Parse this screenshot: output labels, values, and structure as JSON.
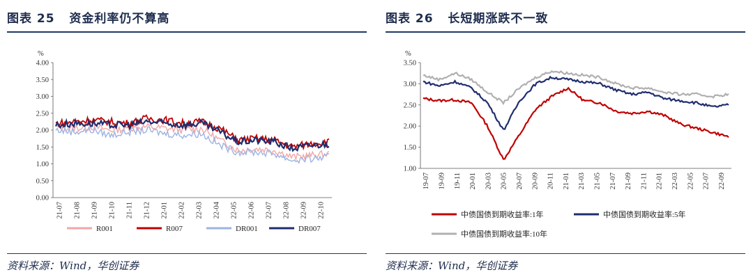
{
  "left": {
    "figure_no": "图表 25",
    "title": "资金利率仍不算高",
    "source": "资料来源：Wind，华创证券",
    "unit": "%",
    "chart_data": {
      "type": "line",
      "x": [
        "21-07",
        "21-08",
        "21-09",
        "21-10",
        "21-11",
        "21-12",
        "22-01",
        "22-02",
        "22-03",
        "22-04",
        "22-05",
        "22-06",
        "22-07",
        "22-08",
        "22-09",
        "22-10"
      ],
      "yticks": [
        "0.00",
        "0.50",
        "1.00",
        "1.50",
        "2.00",
        "2.50",
        "3.00",
        "3.50",
        "4.00"
      ],
      "ylim": [
        0,
        4.0
      ],
      "series": [
        {
          "name": "R001",
          "color": "#f4a6a6",
          "values": [
            2.1,
            2.05,
            2.1,
            2.0,
            2.05,
            2.1,
            2.05,
            2.0,
            2.05,
            1.7,
            1.4,
            1.45,
            1.4,
            1.2,
            1.25,
            1.3
          ]
        },
        {
          "name": "R007",
          "color": "#c00000",
          "values": [
            2.2,
            2.25,
            2.3,
            2.25,
            2.2,
            2.35,
            2.3,
            2.2,
            2.25,
            2.05,
            1.7,
            1.75,
            1.7,
            1.5,
            1.6,
            1.65
          ]
        },
        {
          "name": "DR001",
          "color": "#9db3e0",
          "values": [
            2.0,
            1.95,
            2.0,
            1.85,
            1.95,
            2.0,
            1.9,
            1.85,
            1.9,
            1.55,
            1.35,
            1.35,
            1.3,
            1.1,
            1.15,
            1.2
          ]
        },
        {
          "name": "DR007",
          "color": "#1f2d6e",
          "values": [
            2.15,
            2.2,
            2.2,
            2.15,
            2.15,
            2.25,
            2.2,
            2.15,
            2.2,
            1.95,
            1.65,
            1.7,
            1.65,
            1.45,
            1.55,
            1.6
          ]
        }
      ]
    }
  },
  "right": {
    "figure_no": "图表 26",
    "title": "长短期涨跌不一致",
    "source": "资料来源：Wind，华创证券",
    "unit": "%",
    "chart_data": {
      "type": "line",
      "x": [
        "19-07",
        "19-09",
        "19-11",
        "20-01",
        "20-03",
        "20-05",
        "20-07",
        "20-09",
        "20-11",
        "21-01",
        "21-03",
        "21-05",
        "21-07",
        "21-09",
        "21-11",
        "22-01",
        "22-03",
        "22-05",
        "22-07",
        "22-09"
      ],
      "yticks": [
        "1.00",
        "1.50",
        "2.00",
        "2.50",
        "3.00",
        "3.50"
      ],
      "ylim": [
        1.0,
        3.5
      ],
      "series": [
        {
          "name": "中债国债到期收益率:1年",
          "color": "#c00000",
          "values": [
            2.65,
            2.6,
            2.62,
            2.55,
            2.0,
            1.2,
            1.8,
            2.4,
            2.7,
            2.9,
            2.6,
            2.55,
            2.35,
            2.3,
            2.35,
            2.25,
            2.05,
            1.95,
            1.85,
            1.75
          ]
        },
        {
          "name": "中债国债到期收益率:5年",
          "color": "#1f2d6e",
          "values": [
            3.05,
            2.95,
            3.05,
            2.9,
            2.55,
            1.9,
            2.6,
            3.0,
            3.15,
            3.1,
            3.05,
            3.0,
            2.85,
            2.75,
            2.8,
            2.65,
            2.6,
            2.55,
            2.45,
            2.5
          ]
        },
        {
          "name": "中债国债到期收益率:10年",
          "color": "#b0b0b0",
          "values": [
            3.2,
            3.1,
            3.25,
            3.1,
            2.8,
            2.55,
            2.9,
            3.15,
            3.3,
            3.25,
            3.2,
            3.15,
            3.0,
            2.9,
            2.9,
            2.8,
            2.75,
            2.75,
            2.7,
            2.75
          ]
        }
      ]
    }
  }
}
